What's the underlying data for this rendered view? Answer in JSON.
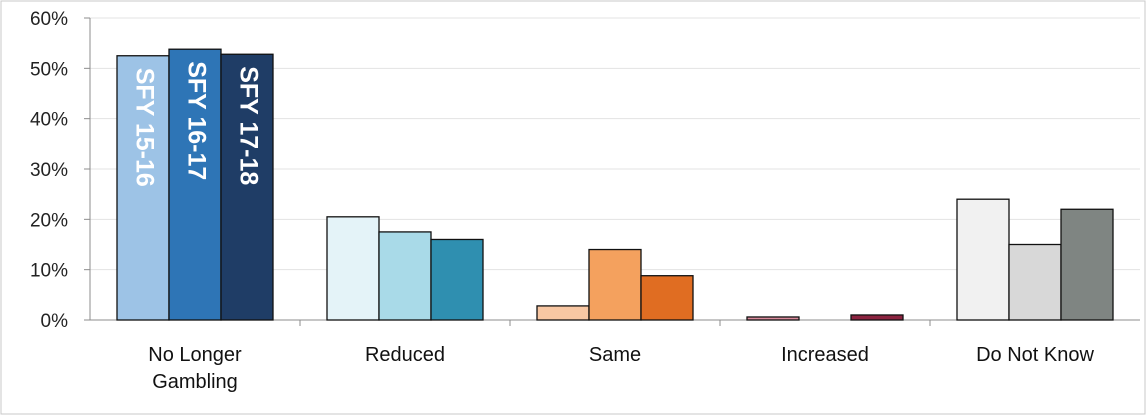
{
  "chart_data": {
    "type": "bar",
    "categories": [
      "No Longer Gambling",
      "Reduced",
      "Same",
      "Increased",
      "Do Not Know"
    ],
    "category_lines": [
      [
        "No Longer",
        "Gambling"
      ],
      [
        "Reduced"
      ],
      [
        "Same"
      ],
      [
        "Increased"
      ],
      [
        "Do Not Know"
      ]
    ],
    "series": [
      {
        "name": "SFY 15-16",
        "values": [
          52.5,
          20.5,
          2.8,
          0.6,
          24.0
        ]
      },
      {
        "name": "SFY 16-17",
        "values": [
          53.8,
          17.5,
          14.0,
          0.0,
          15.0
        ]
      },
      {
        "name": "SFY 17-18",
        "values": [
          52.8,
          16.0,
          8.8,
          1.0,
          22.0
        ]
      }
    ],
    "bar_colors": [
      [
        "#9dc3e6",
        "#2e75b6",
        "#1f3d66"
      ],
      [
        "#e4f3f8",
        "#a9dae8",
        "#2f8fb0"
      ],
      [
        "#f8c7a3",
        "#f4a15e",
        "#e06d22"
      ],
      [
        "#d98a9b",
        "#c9c9c9",
        "#8c2340"
      ],
      [
        "#f1f1f1",
        "#d8d8d8",
        "#7f8582"
      ]
    ],
    "label_colors": [
      "#ffffff",
      "#ffffff",
      "#ffffff"
    ],
    "y_ticks": [
      "0%",
      "10%",
      "20%",
      "30%",
      "40%",
      "50%",
      "60%"
    ],
    "ylim": [
      0,
      60
    ],
    "grid": true,
    "title": "",
    "xlabel": "",
    "ylabel": ""
  }
}
